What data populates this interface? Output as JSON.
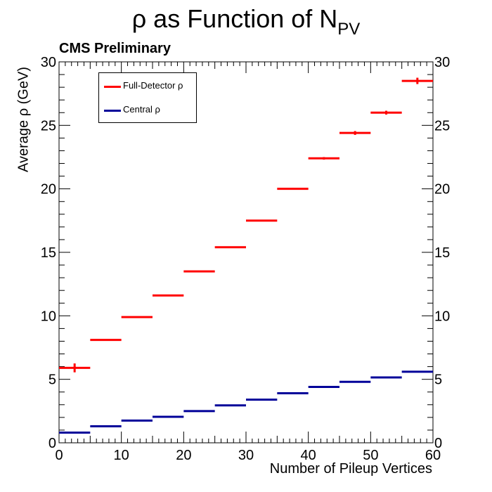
{
  "chart_data": {
    "type": "scatter",
    "title_main": "ρ as Function of N",
    "title_sub": "PV",
    "annotation": "CMS Preliminary",
    "xlabel": "Number of Pileup Vertices",
    "ylabel": "Average ρ (GeV)",
    "xlim": [
      0,
      60
    ],
    "ylim": [
      0,
      30
    ],
    "xticks": [
      0,
      10,
      20,
      30,
      40,
      50,
      60
    ],
    "yticks": [
      0,
      5,
      10,
      15,
      20,
      25,
      30
    ],
    "bin_edges": [
      0,
      5,
      10,
      15,
      20,
      25,
      30,
      35,
      40,
      45,
      50,
      55,
      60
    ],
    "legend_position": "top-left",
    "series": [
      {
        "name": "Full-Detector ρ",
        "color": "#ff0000",
        "x": [
          2.5,
          7.5,
          12.5,
          17.5,
          22.5,
          27.5,
          32.5,
          37.5,
          42.5,
          47.5,
          52.5,
          57.5
        ],
        "values": [
          5.9,
          8.1,
          9.9,
          11.6,
          13.5,
          15.4,
          17.5,
          20.0,
          22.4,
          24.4,
          26.0,
          28.5
        ],
        "errors": [
          0.35,
          0.05,
          0.03,
          0.03,
          0.03,
          0.05,
          0.05,
          0.07,
          0.1,
          0.15,
          0.15,
          0.25
        ]
      },
      {
        "name": "Central ρ",
        "color": "#000099",
        "x": [
          2.5,
          7.5,
          12.5,
          17.5,
          22.5,
          27.5,
          32.5,
          37.5,
          42.5,
          47.5,
          52.5,
          57.5
        ],
        "values": [
          0.8,
          1.3,
          1.75,
          2.05,
          2.5,
          2.95,
          3.4,
          3.9,
          4.4,
          4.8,
          5.15,
          5.6
        ],
        "errors": [
          0.04,
          0.02,
          0.02,
          0.02,
          0.02,
          0.02,
          0.02,
          0.02,
          0.03,
          0.04,
          0.04,
          0.05
        ]
      }
    ],
    "grid": false
  }
}
